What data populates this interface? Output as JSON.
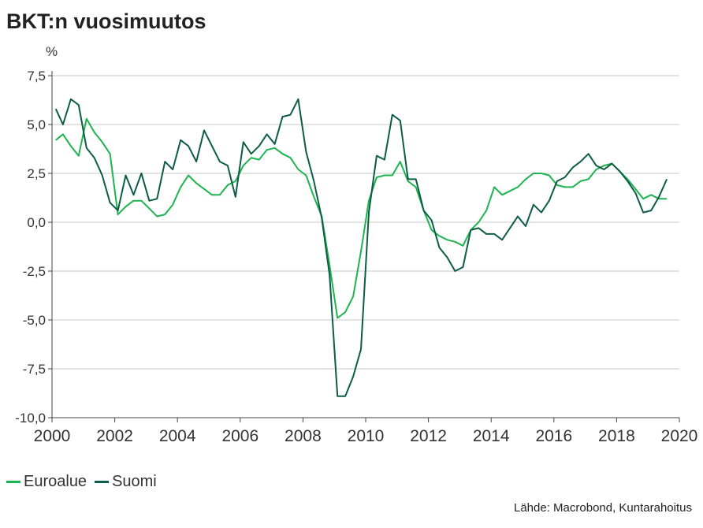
{
  "chart_data": {
    "type": "line",
    "title": "BKT:n vuosimuutos",
    "ylabel": "%",
    "ylim": [
      -10,
      7.5
    ],
    "xlim": [
      2000,
      2020
    ],
    "yticks": [
      {
        "value": 7.5,
        "label": "7,5"
      },
      {
        "value": 5.0,
        "label": "5,0"
      },
      {
        "value": 2.5,
        "label": "2,5"
      },
      {
        "value": 0.0,
        "label": "0,0"
      },
      {
        "value": -2.5,
        "label": "-2,5"
      },
      {
        "value": -5.0,
        "label": "-5,0"
      },
      {
        "value": -7.5,
        "label": "-7,5"
      },
      {
        "value": -10.0,
        "label": "-10,0"
      }
    ],
    "xticks": [
      2000,
      2002,
      2004,
      2006,
      2008,
      2010,
      2012,
      2014,
      2016,
      2018,
      2020
    ],
    "grid": true,
    "legend_position": "bottom-left",
    "source": "Lähde: Macrobond, Kuntarahoitus",
    "series": [
      {
        "name": "Euroalue",
        "color": "#1db34f",
        "x": [
          2000.12,
          2000.35,
          2000.6,
          2000.85,
          2001.1,
          2001.35,
          2001.6,
          2001.85,
          2002.1,
          2002.35,
          2002.6,
          2002.85,
          2003.1,
          2003.35,
          2003.6,
          2003.85,
          2004.1,
          2004.35,
          2004.6,
          2004.85,
          2005.1,
          2005.35,
          2005.6,
          2005.85,
          2006.1,
          2006.35,
          2006.6,
          2006.85,
          2007.1,
          2007.35,
          2007.6,
          2007.85,
          2008.1,
          2008.35,
          2008.6,
          2008.85,
          2009.1,
          2009.35,
          2009.6,
          2009.85,
          2010.1,
          2010.35,
          2010.6,
          2010.85,
          2011.1,
          2011.35,
          2011.6,
          2011.85,
          2012.1,
          2012.35,
          2012.6,
          2012.85,
          2013.1,
          2013.35,
          2013.6,
          2013.85,
          2014.1,
          2014.35,
          2014.6,
          2014.85,
          2015.1,
          2015.35,
          2015.6,
          2015.85,
          2016.1,
          2016.35,
          2016.6,
          2016.85,
          2017.1,
          2017.35,
          2017.6,
          2017.85,
          2018.1,
          2018.35,
          2018.6,
          2018.85,
          2019.1,
          2019.35,
          2019.6
        ],
        "values": [
          4.2,
          4.5,
          3.9,
          3.4,
          5.3,
          4.6,
          4.1,
          3.5,
          0.4,
          0.8,
          1.1,
          1.1,
          0.7,
          0.3,
          0.4,
          0.9,
          1.8,
          2.4,
          2.0,
          1.7,
          1.4,
          1.4,
          1.9,
          2.1,
          2.9,
          3.3,
          3.2,
          3.7,
          3.8,
          3.5,
          3.3,
          2.7,
          2.4,
          1.3,
          0.3,
          -2.2,
          -4.9,
          -4.6,
          -3.8,
          -1.5,
          1.1,
          2.3,
          2.4,
          2.4,
          3.1,
          2.1,
          1.8,
          0.6,
          -0.4,
          -0.7,
          -0.9,
          -1.0,
          -1.2,
          -0.4,
          0.0,
          0.6,
          1.8,
          1.4,
          1.6,
          1.8,
          2.2,
          2.5,
          2.5,
          2.4,
          1.9,
          1.8,
          1.8,
          2.1,
          2.2,
          2.7,
          2.9,
          3.0,
          2.6,
          2.2,
          1.7,
          1.2,
          1.4,
          1.2,
          1.2
        ]
      },
      {
        "name": "Suomi",
        "color": "#0d5c45",
        "x": [
          2000.12,
          2000.35,
          2000.6,
          2000.85,
          2001.1,
          2001.35,
          2001.6,
          2001.85,
          2002.1,
          2002.35,
          2002.6,
          2002.85,
          2003.1,
          2003.35,
          2003.6,
          2003.85,
          2004.1,
          2004.35,
          2004.6,
          2004.85,
          2005.1,
          2005.35,
          2005.6,
          2005.85,
          2006.1,
          2006.35,
          2006.6,
          2006.85,
          2007.1,
          2007.35,
          2007.6,
          2007.85,
          2008.1,
          2008.35,
          2008.6,
          2008.85,
          2009.1,
          2009.35,
          2009.6,
          2009.85,
          2010.1,
          2010.35,
          2010.6,
          2010.85,
          2011.1,
          2011.35,
          2011.6,
          2011.85,
          2012.1,
          2012.35,
          2012.6,
          2012.85,
          2013.1,
          2013.35,
          2013.6,
          2013.85,
          2014.1,
          2014.35,
          2014.6,
          2014.85,
          2015.1,
          2015.35,
          2015.6,
          2015.85,
          2016.1,
          2016.35,
          2016.6,
          2016.85,
          2017.1,
          2017.35,
          2017.6,
          2017.85,
          2018.1,
          2018.35,
          2018.6,
          2018.85,
          2019.1,
          2019.35,
          2019.6
        ],
        "values": [
          5.8,
          5.0,
          6.3,
          6.0,
          3.8,
          3.3,
          2.4,
          1.0,
          0.6,
          2.4,
          1.4,
          2.5,
          1.1,
          1.2,
          3.1,
          2.7,
          4.2,
          3.9,
          3.1,
          4.7,
          3.9,
          3.1,
          2.9,
          1.3,
          4.1,
          3.5,
          3.9,
          4.5,
          4.0,
          5.4,
          5.5,
          6.3,
          3.6,
          2.1,
          0.2,
          -2.7,
          -8.9,
          -8.9,
          -7.9,
          -6.5,
          0.5,
          3.4,
          3.2,
          5.5,
          5.2,
          2.2,
          2.2,
          0.6,
          0.1,
          -1.3,
          -1.8,
          -2.5,
          -2.3,
          -0.4,
          -0.3,
          -0.6,
          -0.6,
          -0.9,
          -0.3,
          0.3,
          -0.2,
          0.9,
          0.5,
          1.1,
          2.1,
          2.3,
          2.8,
          3.1,
          3.5,
          2.9,
          2.7,
          3.0,
          2.6,
          2.1,
          1.5,
          0.5,
          0.6,
          1.3,
          2.2
        ]
      }
    ]
  }
}
